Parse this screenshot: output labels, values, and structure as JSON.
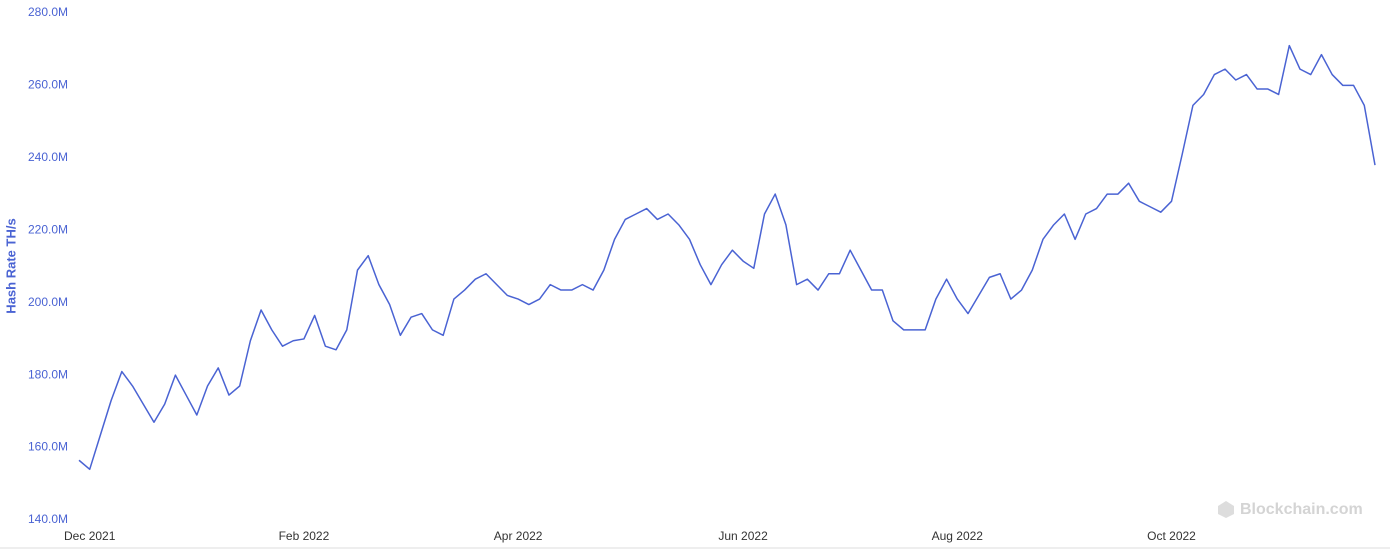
{
  "chart_data": {
    "type": "line",
    "y_axis_label": "Hash Rate TH/s",
    "watermark": "Blockchain.com",
    "color": "#4a63d3",
    "categories": [
      null,
      "Dec 2021",
      null,
      null,
      null,
      null,
      null,
      null,
      null,
      null,
      null,
      null,
      null,
      null,
      null,
      null,
      null,
      null,
      null,
      null,
      null,
      "Feb 2022",
      null,
      null,
      null,
      null,
      null,
      null,
      null,
      null,
      null,
      null,
      null,
      null,
      null,
      null,
      null,
      null,
      null,
      null,
      null,
      "Apr 2022",
      null,
      null,
      null,
      null,
      null,
      null,
      null,
      null,
      null,
      null,
      null,
      null,
      null,
      null,
      null,
      null,
      null,
      null,
      null,
      null,
      "Jun 2022",
      null,
      null,
      null,
      null,
      null,
      null,
      null,
      null,
      null,
      null,
      null,
      null,
      null,
      null,
      null,
      null,
      null,
      null,
      null,
      "Aug 2022",
      null,
      null,
      null,
      null,
      null,
      null,
      null,
      null,
      null,
      null,
      null,
      null,
      null,
      null,
      null,
      null,
      null,
      null,
      null,
      "Oct 2022",
      null,
      null,
      null,
      null,
      null,
      null,
      null,
      null,
      null,
      null,
      null,
      null,
      null,
      null,
      null,
      null,
      null,
      null,
      null
    ],
    "values": [
      156.5,
      154,
      163.5,
      173,
      181,
      177,
      172,
      167,
      172,
      180,
      174.5,
      169,
      177,
      182,
      174.5,
      177,
      189.5,
      198,
      192.5,
      188,
      189.5,
      190,
      196.5,
      188,
      187,
      192.5,
      209,
      213,
      205,
      199.5,
      191,
      196,
      197,
      192.5,
      191,
      201,
      203.5,
      206.5,
      208,
      205,
      202,
      201,
      199.5,
      201,
      205,
      203.5,
      203.5,
      205,
      203.5,
      209,
      217.5,
      223,
      224.5,
      226,
      223,
      224.5,
      221.5,
      217.5,
      210.5,
      205,
      210.5,
      214.5,
      211.5,
      209.5,
      224.5,
      230,
      221.5,
      205,
      206.5,
      203.5,
      208,
      208,
      214.5,
      209,
      203.5,
      203.5,
      195,
      192.5,
      192.5,
      192.5,
      201,
      206.5,
      201,
      197,
      202,
      207,
      208,
      201,
      203.5,
      209,
      217.5,
      221.5,
      224.5,
      217.5,
      224.5,
      226,
      230,
      230,
      233,
      228,
      226.5,
      225,
      228,
      241,
      254.5,
      257.5,
      263,
      264.5,
      261.5,
      263,
      259,
      259,
      257.5,
      271,
      264.5,
      263,
      268.5,
      263,
      260,
      260,
      254.5,
      238
    ],
    "ylim": [
      140,
      280
    ],
    "yticks": [
      {
        "value": 140,
        "label": "140.0M"
      },
      {
        "value": 160,
        "label": "160.0M"
      },
      {
        "value": 180,
        "label": "180.0M"
      },
      {
        "value": 200,
        "label": "200.0M"
      },
      {
        "value": 220,
        "label": "220.0M"
      },
      {
        "value": 240,
        "label": "240.0M"
      },
      {
        "value": 260,
        "label": "260.0M"
      },
      {
        "value": 280,
        "label": "280.0M"
      }
    ]
  }
}
